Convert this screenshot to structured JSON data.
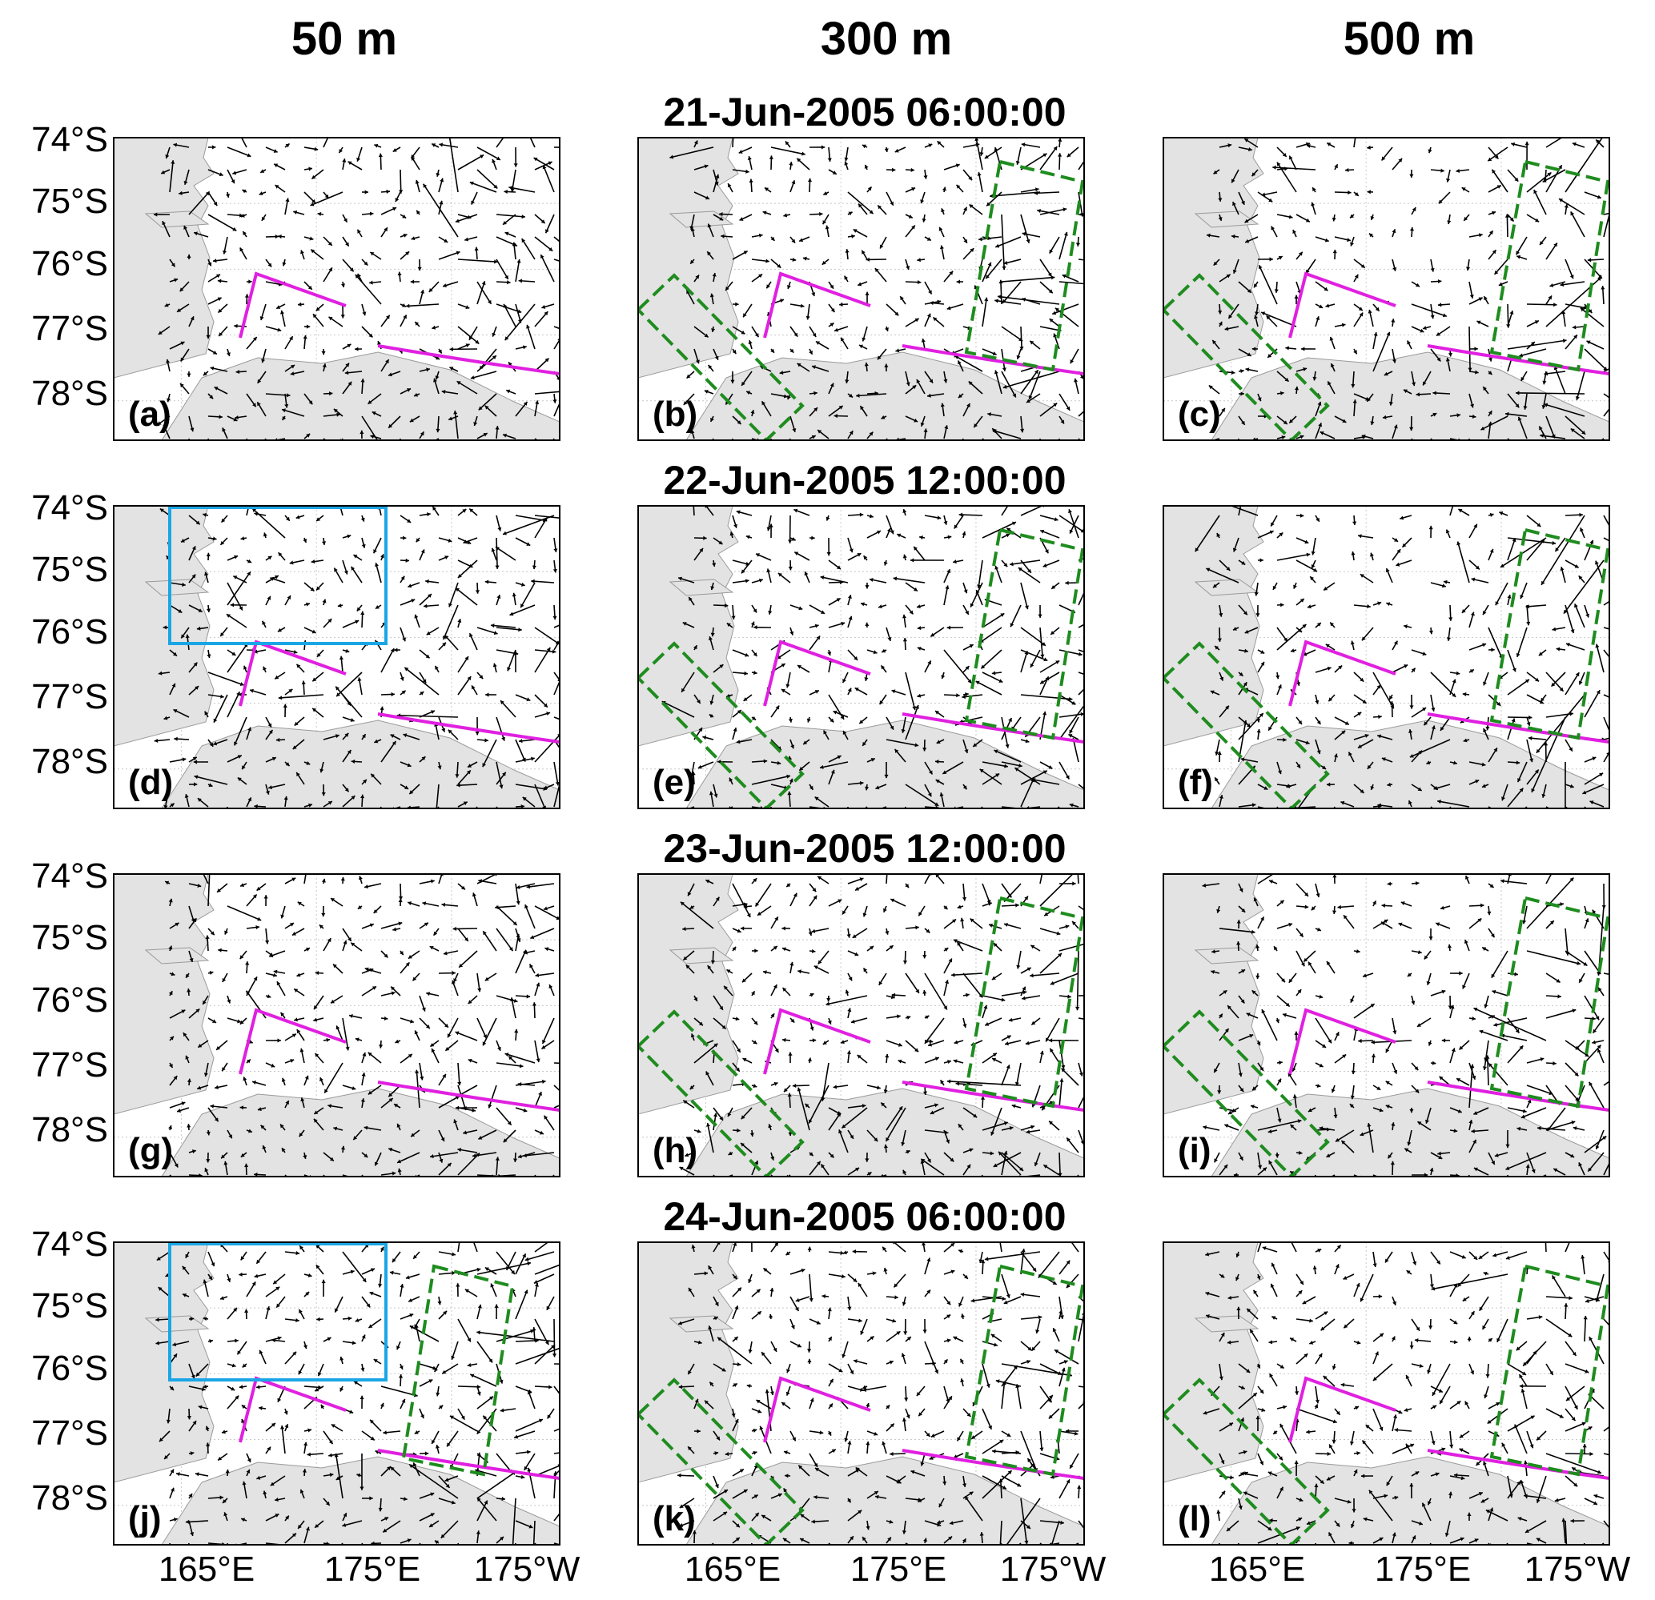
{
  "column_titles": [
    "50 m",
    "300 m",
    "500 m"
  ],
  "row_titles": [
    "21-Jun-2005 06:00:00",
    "22-Jun-2005 12:00:00",
    "23-Jun-2005 12:00:00",
    "24-Jun-2005 06:00:00"
  ],
  "lat_ticks": [
    "74°S",
    "75°S",
    "76°S",
    "77°S",
    "78°S"
  ],
  "lon_ticks": [
    "165°E",
    "175°E",
    "175°W"
  ],
  "panel_labels": [
    [
      "(a)",
      "(b)",
      "(c)"
    ],
    [
      "(d)",
      "(e)",
      "(f)"
    ],
    [
      "(g)",
      "(h)",
      "(i)"
    ],
    [
      "(j)",
      "(k)",
      "(l)"
    ]
  ],
  "map": {
    "lon_range": [
      160,
      193
    ],
    "lat_range": [
      -78.6,
      -74.0
    ],
    "grid_lons": [
      165,
      175,
      185
    ],
    "grid_lats": [
      -74,
      -75,
      -76,
      -77,
      -78
    ],
    "land_color": "#e3e3e3",
    "vector_color": "#000000"
  },
  "overlays": {
    "magenta_color": "#e020e0",
    "green_color": "#1e8c1e",
    "cyan_color": "#1aa6e6",
    "cyan_box_panels": [
      "d",
      "j"
    ],
    "green_box_panels": [
      "b",
      "c",
      "e",
      "f",
      "h",
      "i",
      "j",
      "k",
      "l"
    ]
  }
}
